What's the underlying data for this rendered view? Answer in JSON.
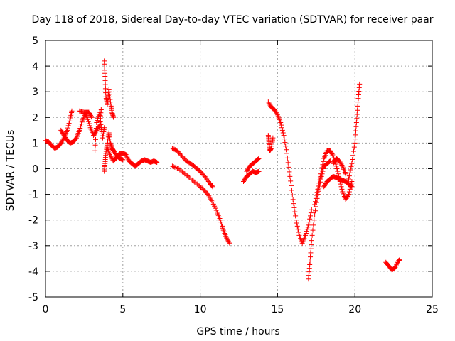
{
  "chart_data": {
    "type": "scatter",
    "title": "Day 118 of 2018, Sidereal Day-to-day VTEC variation (SDTVAR) for receiver paar",
    "xlabel": "GPS time / hours",
    "ylabel": "SDTVAR / TECUs",
    "xlim": [
      0,
      25
    ],
    "ylim": [
      -5,
      5
    ],
    "xticks": [
      0,
      5,
      10,
      15,
      20,
      25
    ],
    "yticks": [
      -5,
      -4,
      -3,
      -2,
      -1,
      0,
      1,
      2,
      3,
      4,
      5
    ],
    "xtick_labels": [
      "0",
      "5",
      "10",
      "15",
      "20",
      "25"
    ],
    "ytick_labels": [
      "-5",
      "-4",
      "-3",
      "-2",
      "-1",
      "0",
      "1",
      "2",
      "3",
      "4",
      "5"
    ],
    "grid": true,
    "marker": "plus",
    "color": "#ff0000",
    "series": [
      {
        "name": "paar",
        "segments": [
          [
            [
              0.0,
              1.1
            ],
            [
              0.2,
              1.05
            ],
            [
              0.4,
              0.9
            ],
            [
              0.6,
              0.8
            ],
            [
              0.8,
              0.85
            ],
            [
              1.0,
              1.0
            ],
            [
              1.2,
              1.2
            ],
            [
              1.4,
              1.5
            ],
            [
              1.6,
              1.95
            ],
            [
              1.7,
              2.25
            ]
          ],
          [
            [
              1.0,
              1.5
            ],
            [
              1.2,
              1.3
            ],
            [
              1.4,
              1.1
            ],
            [
              1.6,
              1.0
            ],
            [
              1.8,
              1.05
            ],
            [
              2.0,
              1.2
            ],
            [
              2.2,
              1.5
            ],
            [
              2.4,
              1.9
            ],
            [
              2.6,
              2.2
            ],
            [
              2.8,
              2.2
            ],
            [
              3.0,
              2.0
            ]
          ],
          [
            [
              2.2,
              2.25
            ],
            [
              2.5,
              2.2
            ],
            [
              2.7,
              2.0
            ],
            [
              2.9,
              1.6
            ],
            [
              3.1,
              1.3
            ],
            [
              3.3,
              1.5
            ],
            [
              3.5,
              1.7
            ],
            [
              3.6,
              2.3
            ]
          ],
          [
            [
              3.2,
              0.7
            ],
            [
              3.3,
              1.8
            ],
            [
              3.5,
              2.2
            ],
            [
              3.6,
              1.6
            ],
            [
              3.7,
              1.2
            ],
            [
              3.8,
              1.6
            ]
          ],
          [
            [
              3.8,
              4.2
            ],
            [
              3.85,
              3.6
            ],
            [
              3.9,
              2.8
            ],
            [
              4.0,
              2.5
            ],
            [
              4.1,
              3.1
            ],
            [
              4.2,
              2.6
            ],
            [
              4.3,
              2.2
            ],
            [
              4.4,
              2.0
            ]
          ],
          [
            [
              3.8,
              -0.1
            ],
            [
              3.85,
              0.2
            ],
            [
              3.9,
              0.6
            ],
            [
              4.0,
              1.0
            ],
            [
              4.1,
              1.4
            ],
            [
              4.2,
              1.0
            ],
            [
              4.3,
              0.8
            ],
            [
              4.4,
              0.7
            ],
            [
              4.6,
              0.5
            ],
            [
              4.8,
              0.4
            ],
            [
              5.0,
              0.35
            ]
          ],
          [
            [
              4.0,
              0.8
            ],
            [
              4.2,
              0.5
            ],
            [
              4.4,
              0.3
            ],
            [
              4.6,
              0.45
            ],
            [
              4.8,
              0.6
            ],
            [
              5.0,
              0.6
            ],
            [
              5.2,
              0.55
            ],
            [
              5.4,
              0.3
            ],
            [
              5.6,
              0.2
            ],
            [
              5.8,
              0.1
            ],
            [
              6.0,
              0.2
            ],
            [
              6.2,
              0.3
            ],
            [
              6.4,
              0.35
            ],
            [
              6.6,
              0.3
            ],
            [
              6.8,
              0.25
            ],
            [
              7.0,
              0.3
            ],
            [
              7.2,
              0.25
            ]
          ],
          [
            [
              8.2,
              0.8
            ],
            [
              8.5,
              0.7
            ],
            [
              8.8,
              0.5
            ],
            [
              9.1,
              0.3
            ],
            [
              9.4,
              0.2
            ],
            [
              9.7,
              0.05
            ],
            [
              10.0,
              -0.1
            ],
            [
              10.3,
              -0.3
            ],
            [
              10.6,
              -0.55
            ],
            [
              10.8,
              -0.7
            ]
          ],
          [
            [
              8.2,
              0.1
            ],
            [
              8.6,
              0.0
            ],
            [
              9.0,
              -0.2
            ],
            [
              9.4,
              -0.4
            ],
            [
              9.8,
              -0.6
            ],
            [
              10.2,
              -0.8
            ],
            [
              10.5,
              -1.0
            ],
            [
              10.8,
              -1.3
            ],
            [
              11.1,
              -1.7
            ],
            [
              11.3,
              -2.0
            ],
            [
              11.5,
              -2.4
            ],
            [
              11.7,
              -2.7
            ],
            [
              11.9,
              -2.9
            ]
          ],
          [
            [
              12.8,
              -0.5
            ],
            [
              13.0,
              -0.3
            ],
            [
              13.2,
              -0.2
            ],
            [
              13.4,
              -0.1
            ],
            [
              13.6,
              -0.15
            ],
            [
              13.8,
              -0.1
            ]
          ],
          [
            [
              13.0,
              -0.1
            ],
            [
              13.2,
              0.1
            ],
            [
              13.4,
              0.2
            ],
            [
              13.6,
              0.3
            ],
            [
              13.8,
              0.4
            ]
          ],
          [
            [
              14.4,
              1.3
            ],
            [
              14.45,
              1.0
            ],
            [
              14.5,
              0.7
            ],
            [
              14.6,
              0.8
            ],
            [
              14.7,
              1.2
            ]
          ],
          [
            [
              14.4,
              2.6
            ],
            [
              14.6,
              2.4
            ],
            [
              14.8,
              2.3
            ],
            [
              15.0,
              2.1
            ],
            [
              15.2,
              1.8
            ],
            [
              15.4,
              1.3
            ],
            [
              15.6,
              0.6
            ],
            [
              15.8,
              -0.3
            ],
            [
              16.0,
              -1.2
            ],
            [
              16.2,
              -2.0
            ],
            [
              16.4,
              -2.6
            ],
            [
              16.6,
              -2.9
            ],
            [
              16.8,
              -2.6
            ],
            [
              17.0,
              -2.2
            ],
            [
              17.2,
              -1.6
            ]
          ],
          [
            [
              17.0,
              -4.3
            ],
            [
              17.1,
              -3.6
            ],
            [
              17.2,
              -2.8
            ],
            [
              17.4,
              -1.8
            ],
            [
              17.6,
              -1.0
            ],
            [
              17.8,
              -0.4
            ],
            [
              18.0,
              0.1
            ],
            [
              18.2,
              0.2
            ],
            [
              18.4,
              0.3
            ]
          ],
          [
            [
              17.4,
              -1.4
            ],
            [
              17.6,
              -0.8
            ],
            [
              17.8,
              -0.2
            ],
            [
              18.0,
              0.4
            ],
            [
              18.2,
              0.7
            ],
            [
              18.4,
              0.7
            ],
            [
              18.6,
              0.5
            ],
            [
              18.8,
              0.1
            ],
            [
              19.0,
              -0.4
            ],
            [
              19.2,
              -0.9
            ],
            [
              19.4,
              -1.2
            ],
            [
              19.6,
              -1.0
            ],
            [
              19.8,
              -0.5
            ]
          ],
          [
            [
              18.0,
              -0.7
            ],
            [
              18.2,
              -0.5
            ],
            [
              18.4,
              -0.4
            ],
            [
              18.6,
              -0.3
            ],
            [
              18.8,
              -0.35
            ],
            [
              19.0,
              -0.4
            ],
            [
              19.2,
              -0.45
            ],
            [
              19.4,
              -0.5
            ],
            [
              19.6,
              -0.6
            ],
            [
              19.8,
              -0.7
            ]
          ],
          [
            [
              18.6,
              0.2
            ],
            [
              18.8,
              0.4
            ],
            [
              19.0,
              0.3
            ],
            [
              19.2,
              0.1
            ],
            [
              19.4,
              -0.2
            ]
          ],
          [
            [
              19.6,
              -0.4
            ],
            [
              19.8,
              0.2
            ],
            [
              20.0,
              1.0
            ],
            [
              20.1,
              1.8
            ],
            [
              20.2,
              2.6
            ],
            [
              20.3,
              3.3
            ]
          ],
          [
            [
              22.0,
              -3.65
            ],
            [
              22.2,
              -3.8
            ],
            [
              22.4,
              -3.95
            ],
            [
              22.6,
              -3.85
            ],
            [
              22.8,
              -3.6
            ],
            [
              22.9,
              -3.55
            ]
          ]
        ]
      }
    ]
  }
}
